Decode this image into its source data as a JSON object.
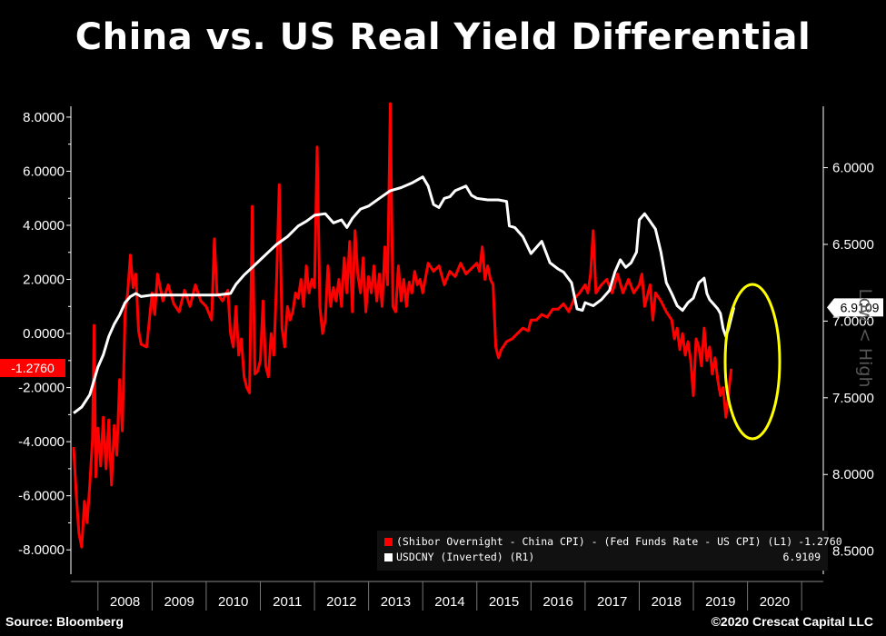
{
  "title": "China vs. US Real Yield Differential",
  "source": "Source: Bloomberg",
  "copyright": "©2020 Crescat Capital LLC",
  "right_axis_title": "Low < High",
  "colors": {
    "red": "#ff0000",
    "white": "#ffffff",
    "highlight": "#ffff00",
    "background": "#000000"
  },
  "legend": [
    {
      "label": "(Shibor Overnight - China CPI) - (Fed Funds Rate - US CPI) (L1)",
      "value": "-1.2760",
      "color": "#ff0000"
    },
    {
      "label": "USDCNY (Inverted) (R1)",
      "value": "6.9109",
      "color": "#ffffff"
    }
  ],
  "chart_data": {
    "type": "line",
    "title": "China vs. US Real Yield Differential",
    "x_ticks": [
      "2008",
      "2009",
      "2010",
      "2011",
      "2012",
      "2013",
      "2014",
      "2015",
      "2016",
      "2017",
      "2018",
      "2019",
      "2020"
    ],
    "y_left": {
      "ticks": [
        "8.0000",
        "6.0000",
        "4.0000",
        "2.0000",
        "0.0000",
        "-2.0000",
        "-4.0000",
        "-6.0000",
        "-8.0000"
      ],
      "range": [
        -8.9,
        8.4
      ]
    },
    "y_right": {
      "ticks": [
        "6.0000",
        "6.5000",
        "7.0000",
        "7.5000",
        "8.0000",
        "8.5000"
      ],
      "range": [
        5.6,
        8.65
      ],
      "inverted": true
    },
    "last_values": {
      "left": "-1.2760",
      "right": "6.9109"
    },
    "annotation": "yellow ellipse highlighting 2019-2020 divergence",
    "series": [
      {
        "name": "(Shibor Overnight - China CPI) - (Fed Funds Rate - US CPI)",
        "axis": "left",
        "color": "#ff0000",
        "points": [
          [
            2007.55,
            -4.2
          ],
          [
            2007.6,
            -6.0
          ],
          [
            2007.65,
            -7.4
          ],
          [
            2007.7,
            -7.9
          ],
          [
            2007.75,
            -6.2
          ],
          [
            2007.8,
            -7.0
          ],
          [
            2007.85,
            -5.6
          ],
          [
            2007.9,
            -3.9
          ],
          [
            2007.93,
            0.3
          ],
          [
            2007.96,
            -5.3
          ],
          [
            2008.0,
            -3.5
          ],
          [
            2008.05,
            -4.9
          ],
          [
            2008.1,
            -3.1
          ],
          [
            2008.15,
            -5.0
          ],
          [
            2008.2,
            -3.2
          ],
          [
            2008.25,
            -5.6
          ],
          [
            2008.3,
            -3.4
          ],
          [
            2008.35,
            -4.5
          ],
          [
            2008.4,
            -1.7
          ],
          [
            2008.45,
            -3.6
          ],
          [
            2008.5,
            0.7
          ],
          [
            2008.55,
            1.5
          ],
          [
            2008.6,
            2.9
          ],
          [
            2008.65,
            1.7
          ],
          [
            2008.7,
            2.2
          ],
          [
            2008.75,
            0.1
          ],
          [
            2008.8,
            -0.4
          ],
          [
            2008.9,
            -0.5
          ],
          [
            2009.0,
            1.5
          ],
          [
            2009.05,
            0.7
          ],
          [
            2009.1,
            2.2
          ],
          [
            2009.2,
            1.2
          ],
          [
            2009.3,
            1.8
          ],
          [
            2009.4,
            1.1
          ],
          [
            2009.5,
            0.8
          ],
          [
            2009.6,
            1.6
          ],
          [
            2009.7,
            1.0
          ],
          [
            2009.8,
            1.8
          ],
          [
            2009.9,
            1.2
          ],
          [
            2010.0,
            1.0
          ],
          [
            2010.1,
            0.5
          ],
          [
            2010.15,
            3.5
          ],
          [
            2010.2,
            1.5
          ],
          [
            2010.3,
            1.2
          ],
          [
            2010.4,
            1.6
          ],
          [
            2010.45,
            0.0
          ],
          [
            2010.5,
            -0.5
          ],
          [
            2010.55,
            1.0
          ],
          [
            2010.6,
            -0.8
          ],
          [
            2010.65,
            -0.2
          ],
          [
            2010.7,
            -1.6
          ],
          [
            2010.75,
            -2.0
          ],
          [
            2010.8,
            -2.2
          ],
          [
            2010.85,
            4.7
          ],
          [
            2010.9,
            -1.5
          ],
          [
            2010.95,
            -1.4
          ],
          [
            2011.0,
            -1.0
          ],
          [
            2011.05,
            1.2
          ],
          [
            2011.1,
            -1.2
          ],
          [
            2011.15,
            -1.6
          ],
          [
            2011.2,
            0.0
          ],
          [
            2011.25,
            -0.8
          ],
          [
            2011.3,
            2.0
          ],
          [
            2011.35,
            5.5
          ],
          [
            2011.4,
            0.2
          ],
          [
            2011.45,
            -0.5
          ],
          [
            2011.5,
            1.0
          ],
          [
            2011.55,
            0.5
          ],
          [
            2011.6,
            0.8
          ],
          [
            2011.65,
            1.5
          ],
          [
            2011.7,
            1.3
          ],
          [
            2011.75,
            2.0
          ],
          [
            2011.8,
            1.0
          ],
          [
            2011.85,
            2.5
          ],
          [
            2011.9,
            1.5
          ],
          [
            2011.95,
            2.0
          ],
          [
            2012.0,
            1.7
          ],
          [
            2012.05,
            6.9
          ],
          [
            2012.1,
            1.0
          ],
          [
            2012.15,
            0.0
          ],
          [
            2012.2,
            0.5
          ],
          [
            2012.25,
            2.5
          ],
          [
            2012.3,
            1.0
          ],
          [
            2012.35,
            1.7
          ],
          [
            2012.4,
            1.2
          ],
          [
            2012.45,
            2.0
          ],
          [
            2012.5,
            1.0
          ],
          [
            2012.55,
            2.8
          ],
          [
            2012.6,
            1.5
          ],
          [
            2012.65,
            3.4
          ],
          [
            2012.7,
            0.8
          ],
          [
            2012.75,
            3.8
          ],
          [
            2012.8,
            2.2
          ],
          [
            2012.85,
            1.5
          ],
          [
            2012.9,
            2.8
          ],
          [
            2012.95,
            0.8
          ],
          [
            2013.0,
            2.1
          ],
          [
            2013.05,
            1.5
          ],
          [
            2013.1,
            2.5
          ],
          [
            2013.15,
            1.2
          ],
          [
            2013.2,
            2.2
          ],
          [
            2013.25,
            1.0
          ],
          [
            2013.3,
            3.2
          ],
          [
            2013.35,
            1.8
          ],
          [
            2013.4,
            8.5
          ],
          [
            2013.45,
            1.0
          ],
          [
            2013.5,
            0.8
          ],
          [
            2013.55,
            2.5
          ],
          [
            2013.6,
            1.2
          ],
          [
            2013.65,
            2.0
          ],
          [
            2013.7,
            1.0
          ],
          [
            2013.75,
            1.9
          ],
          [
            2013.8,
            1.5
          ],
          [
            2013.85,
            2.3
          ],
          [
            2013.9,
            1.8
          ],
          [
            2013.95,
            2.0
          ],
          [
            2014.0,
            1.5
          ],
          [
            2014.1,
            2.6
          ],
          [
            2014.2,
            2.3
          ],
          [
            2014.3,
            2.5
          ],
          [
            2014.4,
            1.8
          ],
          [
            2014.5,
            2.3
          ],
          [
            2014.6,
            2.1
          ],
          [
            2014.7,
            2.6
          ],
          [
            2014.8,
            2.2
          ],
          [
            2014.9,
            2.4
          ],
          [
            2015.0,
            2.6
          ],
          [
            2015.05,
            2.3
          ],
          [
            2015.1,
            3.2
          ],
          [
            2015.15,
            2.0
          ],
          [
            2015.2,
            2.5
          ],
          [
            2015.25,
            2.0
          ],
          [
            2015.3,
            1.8
          ],
          [
            2015.35,
            -0.5
          ],
          [
            2015.4,
            -0.9
          ],
          [
            2015.45,
            -0.6
          ],
          [
            2015.55,
            -0.3
          ],
          [
            2015.65,
            -0.2
          ],
          [
            2015.75,
            0.0
          ],
          [
            2015.85,
            0.2
          ],
          [
            2015.95,
            0.1
          ],
          [
            2016.0,
            0.5
          ],
          [
            2016.1,
            0.5
          ],
          [
            2016.2,
            0.7
          ],
          [
            2016.3,
            0.6
          ],
          [
            2016.4,
            0.9
          ],
          [
            2016.5,
            0.9
          ],
          [
            2016.6,
            1.1
          ],
          [
            2016.7,
            0.8
          ],
          [
            2016.8,
            1.3
          ],
          [
            2016.9,
            1.5
          ],
          [
            2017.0,
            1.8
          ],
          [
            2017.05,
            1.5
          ],
          [
            2017.1,
            2.2
          ],
          [
            2017.15,
            3.8
          ],
          [
            2017.2,
            1.5
          ],
          [
            2017.3,
            1.8
          ],
          [
            2017.4,
            2.0
          ],
          [
            2017.5,
            1.5
          ],
          [
            2017.6,
            2.2
          ],
          [
            2017.7,
            1.5
          ],
          [
            2017.8,
            2.0
          ],
          [
            2017.9,
            1.5
          ],
          [
            2018.0,
            1.8
          ],
          [
            2018.05,
            2.2
          ],
          [
            2018.1,
            1.0
          ],
          [
            2018.2,
            1.8
          ],
          [
            2018.25,
            0.5
          ],
          [
            2018.3,
            1.5
          ],
          [
            2018.4,
            1.2
          ],
          [
            2018.5,
            0.8
          ],
          [
            2018.6,
            0.5
          ],
          [
            2018.65,
            -0.2
          ],
          [
            2018.7,
            0.2
          ],
          [
            2018.75,
            -0.6
          ],
          [
            2018.8,
            0.0
          ],
          [
            2018.85,
            -0.8
          ],
          [
            2018.9,
            -0.3
          ],
          [
            2018.95,
            -1.0
          ],
          [
            2019.0,
            -2.3
          ],
          [
            2019.05,
            -0.2
          ],
          [
            2019.1,
            -0.5
          ],
          [
            2019.15,
            -1.2
          ],
          [
            2019.2,
            0.2
          ],
          [
            2019.25,
            -1.0
          ],
          [
            2019.3,
            -0.5
          ],
          [
            2019.35,
            -1.5
          ],
          [
            2019.4,
            -0.9
          ],
          [
            2019.45,
            -1.7
          ],
          [
            2019.5,
            -2.3
          ],
          [
            2019.55,
            -2.0
          ],
          [
            2019.6,
            -3.1
          ],
          [
            2019.65,
            -2.2
          ],
          [
            2019.7,
            -1.3
          ]
        ]
      },
      {
        "name": "USDCNY (Inverted)",
        "axis": "right",
        "color": "#ffffff",
        "points": [
          [
            2007.55,
            7.6
          ],
          [
            2007.7,
            7.56
          ],
          [
            2007.85,
            7.48
          ],
          [
            2008.0,
            7.3
          ],
          [
            2008.1,
            7.22
          ],
          [
            2008.2,
            7.1
          ],
          [
            2008.3,
            7.02
          ],
          [
            2008.4,
            6.96
          ],
          [
            2008.5,
            6.88
          ],
          [
            2008.6,
            6.84
          ],
          [
            2008.7,
            6.82
          ],
          [
            2008.8,
            6.84
          ],
          [
            2009.0,
            6.83
          ],
          [
            2009.3,
            6.83
          ],
          [
            2009.6,
            6.83
          ],
          [
            2009.9,
            6.83
          ],
          [
            2010.2,
            6.83
          ],
          [
            2010.45,
            6.82
          ],
          [
            2010.55,
            6.76
          ],
          [
            2010.7,
            6.7
          ],
          [
            2010.85,
            6.65
          ],
          [
            2011.0,
            6.6
          ],
          [
            2011.15,
            6.55
          ],
          [
            2011.3,
            6.5
          ],
          [
            2011.5,
            6.45
          ],
          [
            2011.7,
            6.38
          ],
          [
            2011.85,
            6.35
          ],
          [
            2012.0,
            6.31
          ],
          [
            2012.2,
            6.3
          ],
          [
            2012.35,
            6.36
          ],
          [
            2012.5,
            6.34
          ],
          [
            2012.6,
            6.39
          ],
          [
            2012.7,
            6.33
          ],
          [
            2012.85,
            6.27
          ],
          [
            2013.0,
            6.25
          ],
          [
            2013.2,
            6.2
          ],
          [
            2013.4,
            6.15
          ],
          [
            2013.6,
            6.13
          ],
          [
            2013.8,
            6.1
          ],
          [
            2014.0,
            6.06
          ],
          [
            2014.1,
            6.12
          ],
          [
            2014.2,
            6.24
          ],
          [
            2014.3,
            6.26
          ],
          [
            2014.4,
            6.2
          ],
          [
            2014.5,
            6.19
          ],
          [
            2014.6,
            6.15
          ],
          [
            2014.8,
            6.12
          ],
          [
            2014.9,
            6.18
          ],
          [
            2015.0,
            6.2
          ],
          [
            2015.2,
            6.21
          ],
          [
            2015.4,
            6.21
          ],
          [
            2015.55,
            6.22
          ],
          [
            2015.6,
            6.38
          ],
          [
            2015.7,
            6.39
          ],
          [
            2015.85,
            6.45
          ],
          [
            2016.0,
            6.56
          ],
          [
            2016.1,
            6.52
          ],
          [
            2016.2,
            6.48
          ],
          [
            2016.35,
            6.62
          ],
          [
            2016.5,
            6.66
          ],
          [
            2016.6,
            6.68
          ],
          [
            2016.75,
            6.75
          ],
          [
            2016.85,
            6.92
          ],
          [
            2016.95,
            6.93
          ],
          [
            2017.0,
            6.88
          ],
          [
            2017.15,
            6.9
          ],
          [
            2017.3,
            6.86
          ],
          [
            2017.45,
            6.8
          ],
          [
            2017.55,
            6.68
          ],
          [
            2017.65,
            6.6
          ],
          [
            2017.75,
            6.65
          ],
          [
            2017.85,
            6.62
          ],
          [
            2017.95,
            6.55
          ],
          [
            2018.0,
            6.34
          ],
          [
            2018.1,
            6.3
          ],
          [
            2018.2,
            6.35
          ],
          [
            2018.3,
            6.4
          ],
          [
            2018.4,
            6.55
          ],
          [
            2018.5,
            6.75
          ],
          [
            2018.6,
            6.82
          ],
          [
            2018.7,
            6.9
          ],
          [
            2018.8,
            6.93
          ],
          [
            2018.9,
            6.88
          ],
          [
            2019.0,
            6.85
          ],
          [
            2019.1,
            6.75
          ],
          [
            2019.2,
            6.72
          ],
          [
            2019.25,
            6.82
          ],
          [
            2019.3,
            6.86
          ],
          [
            2019.4,
            6.9
          ],
          [
            2019.45,
            6.92
          ],
          [
            2019.5,
            6.95
          ],
          [
            2019.55,
            7.05
          ],
          [
            2019.6,
            7.1
          ],
          [
            2019.65,
            7.05
          ],
          [
            2019.7,
            6.98
          ],
          [
            2019.75,
            6.91
          ]
        ]
      }
    ]
  }
}
